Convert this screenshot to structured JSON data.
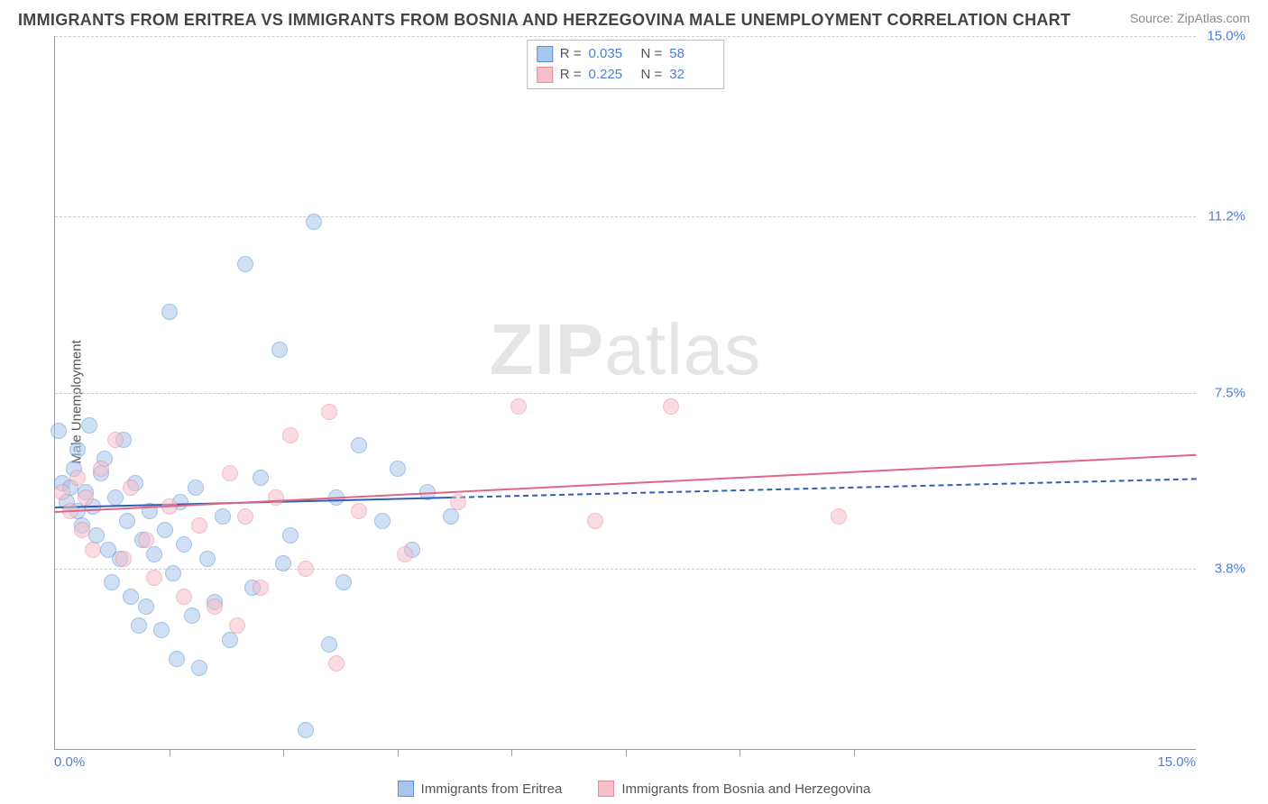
{
  "title": "IMMIGRANTS FROM ERITREA VS IMMIGRANTS FROM BOSNIA AND HERZEGOVINA MALE UNEMPLOYMENT CORRELATION CHART",
  "source": "Source: ZipAtlas.com",
  "yaxis_title": "Male Unemployment",
  "watermark_bold": "ZIP",
  "watermark_rest": "atlas",
  "chart": {
    "type": "scatter",
    "background_color": "#ffffff",
    "grid_color": "#cccccc",
    "axis_color": "#999999",
    "tick_label_color": "#4a7ddb",
    "xlim": [
      0,
      15
    ],
    "ylim": [
      0,
      15
    ],
    "yticks": [
      {
        "v": 3.8,
        "label": "3.8%"
      },
      {
        "v": 7.5,
        "label": "7.5%"
      },
      {
        "v": 11.2,
        "label": "11.2%"
      },
      {
        "v": 15.0,
        "label": "15.0%"
      }
    ],
    "xticks": [
      1.5,
      3.0,
      4.5,
      6.0,
      7.5,
      9.0,
      10.5
    ],
    "xaxis_left_label": "0.0%",
    "xaxis_right_label": "15.0%",
    "marker_radius": 9,
    "marker_opacity": 0.55,
    "series": [
      {
        "name": "Immigrants from Eritrea",
        "color_fill": "#a8c5ec",
        "color_stroke": "#5b8fd6",
        "stats": {
          "R_label": "R =",
          "R": "0.035",
          "N_label": "N =",
          "N": "58"
        },
        "trend": {
          "x1": 0,
          "y1": 5.1,
          "x2": 15,
          "y2": 5.7,
          "solid_until_x": 5.2,
          "color": "#2f5fb0"
        },
        "points": [
          [
            0.05,
            6.7
          ],
          [
            0.1,
            5.6
          ],
          [
            0.15,
            5.2
          ],
          [
            0.2,
            5.5
          ],
          [
            0.25,
            5.9
          ],
          [
            0.3,
            6.3
          ],
          [
            0.3,
            5.0
          ],
          [
            0.35,
            4.7
          ],
          [
            0.4,
            5.4
          ],
          [
            0.45,
            6.8
          ],
          [
            0.5,
            5.1
          ],
          [
            0.55,
            4.5
          ],
          [
            0.6,
            5.8
          ],
          [
            0.65,
            6.1
          ],
          [
            0.7,
            4.2
          ],
          [
            0.75,
            3.5
          ],
          [
            0.8,
            5.3
          ],
          [
            0.85,
            4.0
          ],
          [
            0.9,
            6.5
          ],
          [
            0.95,
            4.8
          ],
          [
            1.0,
            3.2
          ],
          [
            1.05,
            5.6
          ],
          [
            1.1,
            2.6
          ],
          [
            1.15,
            4.4
          ],
          [
            1.2,
            3.0
          ],
          [
            1.25,
            5.0
          ],
          [
            1.3,
            4.1
          ],
          [
            1.4,
            2.5
          ],
          [
            1.45,
            4.6
          ],
          [
            1.5,
            9.2
          ],
          [
            1.55,
            3.7
          ],
          [
            1.6,
            1.9
          ],
          [
            1.65,
            5.2
          ],
          [
            1.7,
            4.3
          ],
          [
            1.8,
            2.8
          ],
          [
            1.85,
            5.5
          ],
          [
            1.9,
            1.7
          ],
          [
            2.0,
            4.0
          ],
          [
            2.1,
            3.1
          ],
          [
            2.2,
            4.9
          ],
          [
            2.3,
            2.3
          ],
          [
            2.5,
            10.2
          ],
          [
            2.6,
            3.4
          ],
          [
            2.7,
            5.7
          ],
          [
            2.95,
            8.4
          ],
          [
            3.0,
            3.9
          ],
          [
            3.1,
            4.5
          ],
          [
            3.3,
            0.4
          ],
          [
            3.4,
            11.1
          ],
          [
            3.6,
            2.2
          ],
          [
            3.7,
            5.3
          ],
          [
            3.8,
            3.5
          ],
          [
            4.0,
            6.4
          ],
          [
            4.3,
            4.8
          ],
          [
            4.5,
            5.9
          ],
          [
            4.7,
            4.2
          ],
          [
            4.9,
            5.4
          ],
          [
            5.2,
            4.9
          ]
        ]
      },
      {
        "name": "Immigrants from Bosnia and Herzegovina",
        "color_fill": "#f5bfca",
        "color_stroke": "#e58ba0",
        "stats": {
          "R_label": "R =",
          "R": "0.225",
          "N_label": "N =",
          "N": "32"
        },
        "trend": {
          "x1": 0,
          "y1": 5.0,
          "x2": 15,
          "y2": 6.2,
          "solid_until_x": 15,
          "color": "#e06688"
        },
        "points": [
          [
            0.1,
            5.4
          ],
          [
            0.2,
            5.0
          ],
          [
            0.3,
            5.7
          ],
          [
            0.35,
            4.6
          ],
          [
            0.4,
            5.3
          ],
          [
            0.5,
            4.2
          ],
          [
            0.6,
            5.9
          ],
          [
            0.8,
            6.5
          ],
          [
            0.9,
            4.0
          ],
          [
            1.0,
            5.5
          ],
          [
            1.2,
            4.4
          ],
          [
            1.3,
            3.6
          ],
          [
            1.5,
            5.1
          ],
          [
            1.7,
            3.2
          ],
          [
            1.9,
            4.7
          ],
          [
            2.1,
            3.0
          ],
          [
            2.3,
            5.8
          ],
          [
            2.4,
            2.6
          ],
          [
            2.5,
            4.9
          ],
          [
            2.7,
            3.4
          ],
          [
            2.9,
            5.3
          ],
          [
            3.1,
            6.6
          ],
          [
            3.3,
            3.8
          ],
          [
            3.6,
            7.1
          ],
          [
            3.7,
            1.8
          ],
          [
            4.0,
            5.0
          ],
          [
            4.6,
            4.1
          ],
          [
            5.3,
            5.2
          ],
          [
            6.1,
            7.2
          ],
          [
            7.1,
            4.8
          ],
          [
            8.1,
            7.2
          ],
          [
            10.3,
            4.9
          ]
        ]
      }
    ]
  }
}
